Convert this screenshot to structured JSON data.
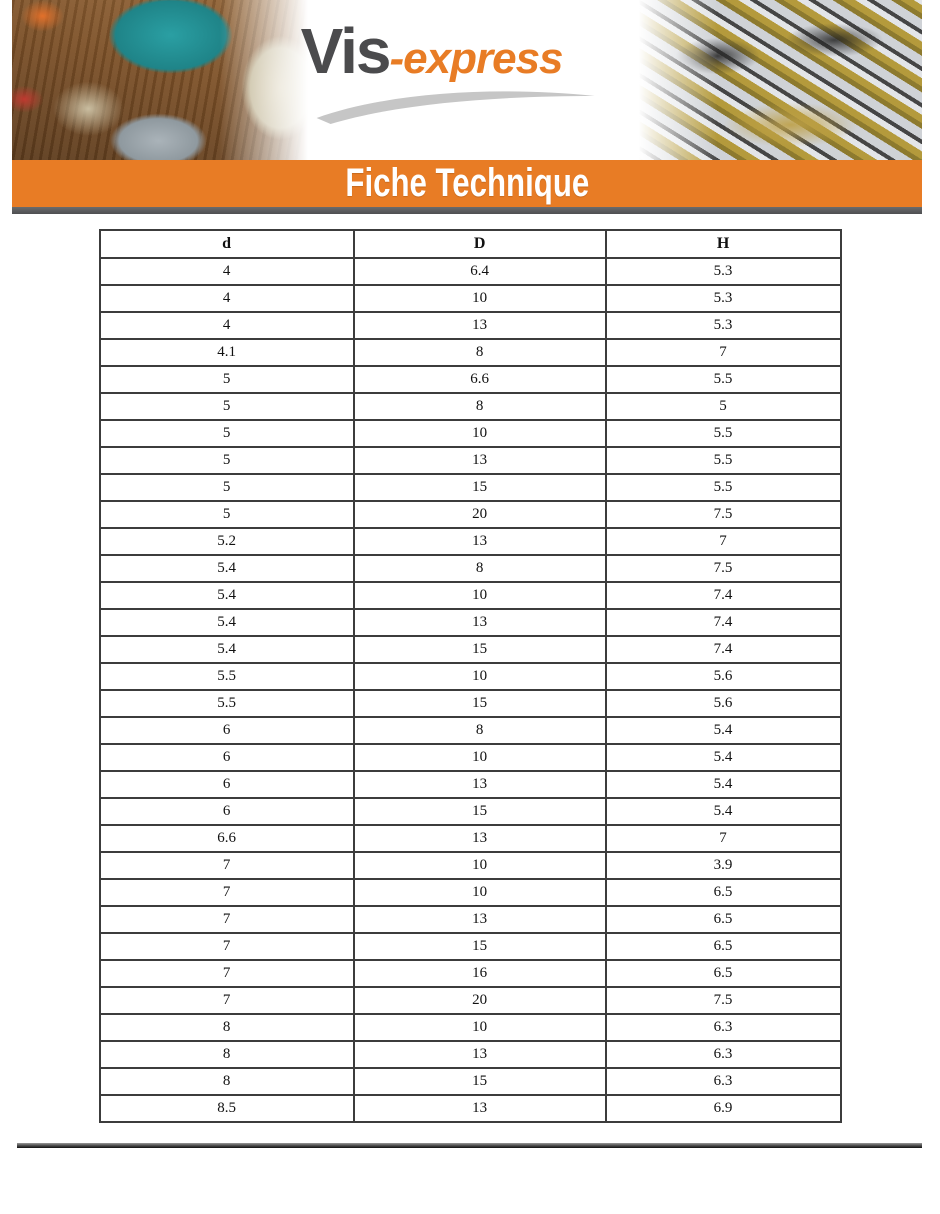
{
  "logo": {
    "part1": "Vis",
    "part2": "-express"
  },
  "banner": {
    "title": "Fiche Technique"
  },
  "header_images": {
    "left": "workbench-with-screw-organizer-photo",
    "right": "pile-of-screws-photo"
  },
  "colors": {
    "accent_orange": "#E87C25",
    "divider_gray": "#58595B",
    "logo_gray": "#4B4B4D",
    "swoosh_gray": "#C6C6C6",
    "table_border": "#3C3C3C"
  },
  "table": {
    "headers": [
      "d",
      "D",
      "H"
    ],
    "rows": [
      [
        "4",
        "6.4",
        "5.3"
      ],
      [
        "4",
        "10",
        "5.3"
      ],
      [
        "4",
        "13",
        "5.3"
      ],
      [
        "4.1",
        "8",
        "7"
      ],
      [
        "5",
        "6.6",
        "5.5"
      ],
      [
        "5",
        "8",
        "5"
      ],
      [
        "5",
        "10",
        "5.5"
      ],
      [
        "5",
        "13",
        "5.5"
      ],
      [
        "5",
        "15",
        "5.5"
      ],
      [
        "5",
        "20",
        "7.5"
      ],
      [
        "5.2",
        "13",
        "7"
      ],
      [
        "5.4",
        "8",
        "7.5"
      ],
      [
        "5.4",
        "10",
        "7.4"
      ],
      [
        "5.4",
        "13",
        "7.4"
      ],
      [
        "5.4",
        "15",
        "7.4"
      ],
      [
        "5.5",
        "10",
        "5.6"
      ],
      [
        "5.5",
        "15",
        "5.6"
      ],
      [
        "6",
        "8",
        "5.4"
      ],
      [
        "6",
        "10",
        "5.4"
      ],
      [
        "6",
        "13",
        "5.4"
      ],
      [
        "6",
        "15",
        "5.4"
      ],
      [
        "6.6",
        "13",
        "7"
      ],
      [
        "7",
        "10",
        "3.9"
      ],
      [
        "7",
        "10",
        "6.5"
      ],
      [
        "7",
        "13",
        "6.5"
      ],
      [
        "7",
        "15",
        "6.5"
      ],
      [
        "7",
        "16",
        "6.5"
      ],
      [
        "7",
        "20",
        "7.5"
      ],
      [
        "8",
        "10",
        "6.3"
      ],
      [
        "8",
        "13",
        "6.3"
      ],
      [
        "8",
        "15",
        "6.3"
      ],
      [
        "8.5",
        "13",
        "6.9"
      ]
    ]
  }
}
